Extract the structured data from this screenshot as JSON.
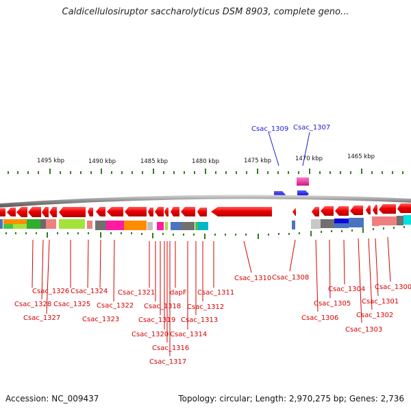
{
  "title": "Caldicellulosiruptor saccharolyticus DSM 8903, complete geno...",
  "footer": {
    "accession": "Accession: NC_009437",
    "summary": "Topology: circular; Length: 2,970,275 bp; Genes: 2,736"
  },
  "scale": [
    "1495 kbp",
    "1490 kbp",
    "1485 kbp",
    "1480 kbp",
    "1475 kbp",
    "1470 kbp",
    "1465 kbp"
  ],
  "genes_above": [
    "Csac_1309",
    "Csac_1307"
  ],
  "genes_below": [
    "Csac_1326",
    "Csac_1328",
    "Csac_1327",
    "Csac_1324",
    "Csac_1325",
    "Csac_1322",
    "Csac_1323",
    "Csac_1321",
    "Csac_1318",
    "Csac_1319",
    "Csac_1320",
    "dapF",
    "Csac_1316",
    "Csac_1317",
    "Csac_1314",
    "Csac_1313",
    "Csac_1312",
    "Csac_1311",
    "Csac_1310",
    "Csac_1308",
    "Csac_1306",
    "Csac_1305",
    "Csac_1304",
    "Csac_1303",
    "Csac_1302",
    "Csac_1301",
    "Csac_1300"
  ],
  "colors": {
    "forward_gene": "#1a1ad8",
    "reverse_gene": "#e00000",
    "backbone": "#8a8a8a",
    "tick": "#2e7d1e"
  }
}
